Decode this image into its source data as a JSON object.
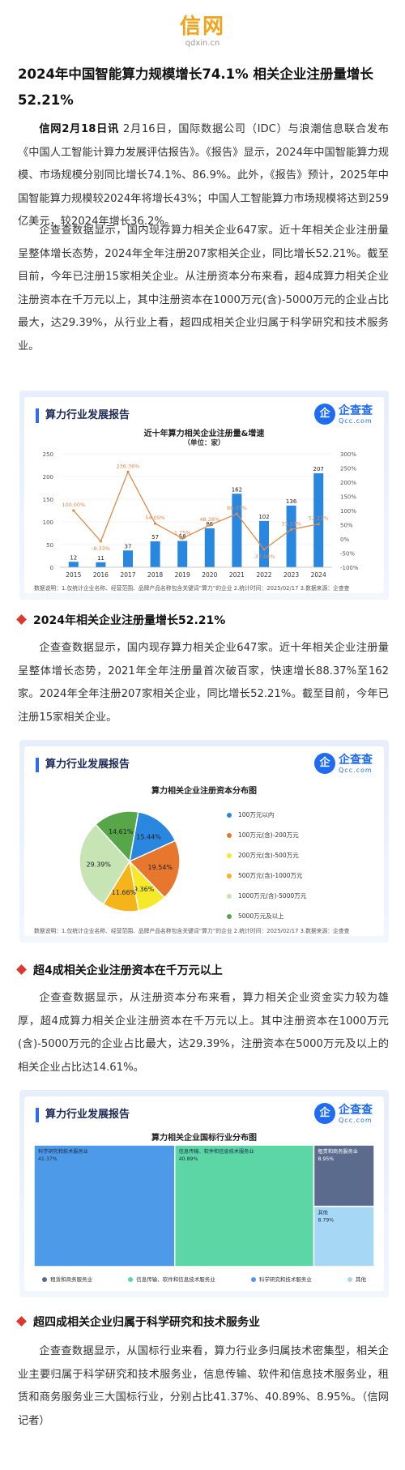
{
  "logo": {
    "main": "信网",
    "sub": "qdxin.cn"
  },
  "article": {
    "title": "2024年中国智能算力规模增长74.1% 相关企业注册量增长52.21%",
    "p1_lead": "信网2月18日讯",
    "p1": " 2月16日，国际数据公司（IDC）与浪潮信息联合发布《中国人工智能计算力发展评估报告》。《报告》显示，2024年中国智能算力规模、市场规模分别同比增长74.1%、86.9%。此外，《报告》预计，2025年中国智能算力规模较2024年将增长43%；中国人工智能算力市场规模将达到259亿美元，较2024年增长36.2%。",
    "p2": "企查查数据显示，国内现存算力相关企业647家。近十年相关企业注册量呈整体增长态势，2024年全年注册207家相关企业，同比增长52.21%。截至目前，今年已注册15家相关企业。从注册资本分布来看，超4成算力相关企业注册资本在千万元以上，其中注册资本在1000万元(含)-5000万元的企业占比最大，达29.39%，从行业上看，超四成相关企业归属于科学研究和技术服务业。",
    "s1": "2024年相关企业注册量增长52.21%",
    "p3": "企查查数据显示，国内现存算力相关企业647家。近十年相关企业注册量呈整体增长态势，2021年全年注册量首次破百家，快速增长88.37%至162家。2024年全年注册207家相关企业，同比增长52.21%。截至目前，今年已注册15家相关企业。",
    "s2": "超4成相关企业注册资本在千万元以上",
    "p4": "企查查数据显示，从注册资本分布来看，算力相关企业资金实力较为雄厚，超4成算力相关企业注册资本在千万元以上。其中注册资本在1000万元(含)-5000万元的企业占比最大，达29.39%，注册资本在5000万元及以上的相关企业占比达14.61%。",
    "s3": "超四成相关企业归属于科学研究和技术服务业",
    "p5": "企查查数据显示，从国标行业来看，算力行业多归属技术密集型，相关企业主要归属于科学研究和技术服务业，信息传输、软件和信息技术服务业，租赁和商务服务业三大国标行业，分别占比41.37%、40.89%、8.95%。（信网记者）"
  },
  "card": {
    "badge": "算力行业发展报告",
    "qcc_mark": "企",
    "qcc_name": "企查查",
    "qcc_domain": "Qcc.com",
    "footnote1": "数据说明：1.仅统计企业名称、经营范围、品牌产品名称包含关键词“算力”的企业 2.统计时间：2025/02/17 3.数据来源：企查查",
    "footnote2": "数据说明：1.仅统计企业名称、经营范围、品牌产品名称包含关键词“算力”的企业  2.统计时间：2025/02/17  3.数据来源：企查查",
    "footnote3": "数据说明：1.仅统计企业名称、经营范围、品牌产品名称包含关键词“算力”的企业  2.统计时间：2025/02/17  3.数据来源：企查查"
  },
  "colors": {
    "bar": "#2a87e0",
    "line": "#e08a4a",
    "accent": "#e0352b",
    "brand": "#1f6cf3"
  },
  "chart_data": [
    {
      "type": "bar",
      "title": "近十年算力相关企业注册量&增速",
      "subtitle": "（单位：家）",
      "categories": [
        "2015",
        "2016",
        "2017",
        "2018",
        "2019",
        "2020",
        "2021",
        "2022",
        "2023",
        "2024"
      ],
      "series": [
        {
          "values": [
            12,
            11,
            37,
            57,
            58,
            86,
            162,
            102,
            136,
            207
          ]
        },
        {
          "type": "line",
          "axis": "right",
          "values": [
            100.0,
            -8.33,
            236.36,
            54.05,
            1.75,
            48.28,
            88.37,
            -37.04,
            33.33,
            52.21
          ]
        }
      ],
      "value_labels": [
        "12",
        "11",
        "37",
        "57",
        "58",
        "86",
        "162",
        "102",
        "136",
        "207"
      ],
      "rate_labels": [
        "100.00%",
        "-8.33%",
        "236.36%",
        "54.05%",
        "1.75%",
        "48.28%",
        "88.37%",
        "-37.04%",
        "33.33%",
        "52.21%"
      ],
      "ylim": [
        0,
        250
      ],
      "yticks": [
        "0",
        "50",
        "100",
        "150",
        "200",
        "250"
      ],
      "y2lim": [
        -100,
        300
      ],
      "y2ticks": [
        "300%",
        "250%",
        "200%",
        "150%",
        "100%",
        "50%",
        "0%",
        "-50%",
        "-100%"
      ]
    },
    {
      "type": "pie",
      "title": "算力相关企业注册资本分布图",
      "slices": [
        {
          "label": "100万元以内",
          "value": 15.44,
          "color": "#2a87e0"
        },
        {
          "label": "100万元(含)-200万元",
          "value": 19.54,
          "color": "#e8772e"
        },
        {
          "label": "200万元(含)-500万元",
          "value": 9.36,
          "color": "#f5e92a"
        },
        {
          "label": "500万元(含)-1000万元",
          "value": 11.66,
          "color": "#f5b51a"
        },
        {
          "label": "1000万元(含)-5000万元",
          "value": 29.39,
          "color": "#c6e4b4"
        },
        {
          "label": "5000万元及以上",
          "value": 14.61,
          "color": "#58a64a"
        }
      ],
      "pct_labels": [
        "15.44%",
        "19.54%",
        "9.36%",
        "11.66%",
        "29.39%",
        "14.61%"
      ]
    },
    {
      "type": "treemap",
      "title": "算力相关企业国标行业分布图",
      "items": [
        {
          "label": "科学研究和技术服务业",
          "value": 41.37,
          "pct": "41.37%",
          "color": "#4d9ae8"
        },
        {
          "label": "信息传输、软件和信息技术服务业",
          "value": 40.89,
          "pct": "40.89%",
          "color": "#5cd6a4"
        },
        {
          "label": "租赁和商务服务业",
          "value": 8.95,
          "pct": "8.95%",
          "color": "#5a6b8e"
        },
        {
          "label": "其他",
          "value": 8.79,
          "pct": "8.79%",
          "color": "#a6d8f5"
        }
      ],
      "legend": [
        "租赁和商务服务业",
        "信息传输、软件和信息技术服务业",
        "科学研究和技术服务业",
        "其他"
      ]
    }
  ]
}
